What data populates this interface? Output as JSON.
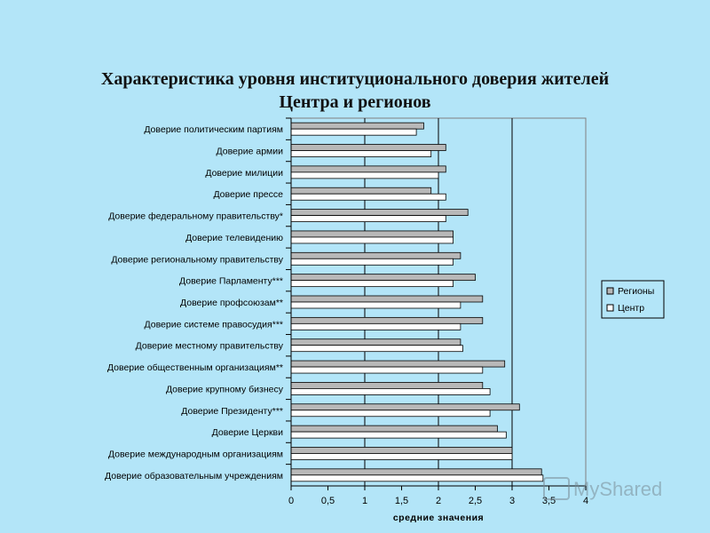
{
  "title_line1": "Характеристика уровня институционального доверия жителей",
  "title_line2": "Центра и регионов",
  "watermark_text": "MyShared",
  "chart_data": {
    "type": "bar",
    "orientation": "horizontal",
    "categories": [
      "Доверие политическим партиям",
      "Доверие армии",
      "Доверие милиции",
      "Доверие прессе",
      "Доверие федеральному правительству*",
      "Доверие телевидению",
      "Доверие региональному правительству",
      "Доверие Парламенту***",
      "Доверие профсоюзам**",
      "Доверие системе правосудия***",
      "Доверие местному правительству",
      "Доверие общественным организациям**",
      "Доверие крупному бизнесу",
      "Доверие Президенту***",
      "Доверие Церкви",
      "Доверие международным организациям",
      "Доверие образовательным учреждениям"
    ],
    "series": [
      {
        "name": "Регионы",
        "color": "#b8b8b8",
        "values": [
          1.8,
          2.1,
          2.1,
          1.9,
          2.4,
          2.2,
          2.3,
          2.5,
          2.6,
          2.6,
          2.3,
          2.9,
          2.6,
          3.1,
          2.8,
          3.0,
          3.4
        ]
      },
      {
        "name": "Центр",
        "color": "#ffffff",
        "values": [
          1.7,
          1.9,
          2.0,
          2.1,
          2.1,
          2.2,
          2.2,
          2.2,
          2.3,
          2.3,
          2.33,
          2.6,
          2.7,
          2.7,
          2.92,
          3.0,
          3.42
        ]
      }
    ],
    "x_ticks": [
      "0",
      "0,5",
      "1",
      "1,5",
      "2",
      "2,5",
      "3",
      "3,5",
      "4"
    ],
    "xlim": [
      0,
      4
    ],
    "xlabel": "средние значения",
    "legend_position": "right",
    "gridlines": "vertical at integers"
  }
}
